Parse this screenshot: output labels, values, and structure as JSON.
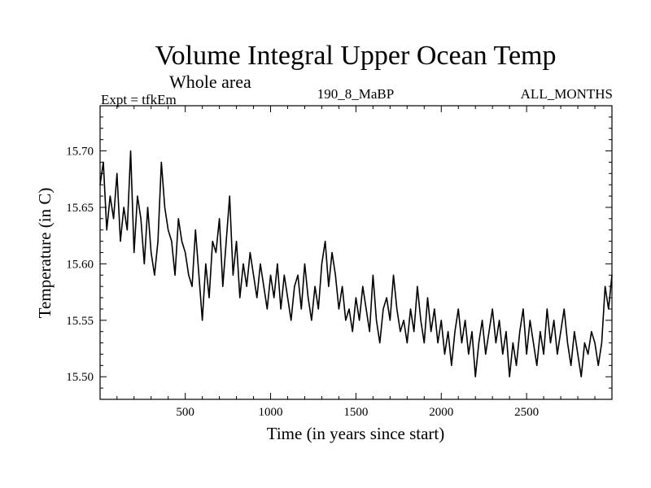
{
  "chart_data": {
    "type": "line",
    "title": "Volume Integral Upper Ocean Temp",
    "subtitle": "Whole area",
    "annotations": {
      "experiment": "Expt = tfkEm",
      "run": "190_8_MaBP",
      "months": "ALL_MONTHS"
    },
    "xlabel": "Time (in years since start)",
    "ylabel": "Temperature (in C)",
    "xlim": [
      1,
      3000
    ],
    "ylim": [
      15.48,
      15.74
    ],
    "x_ticks": [
      500,
      1000,
      1500,
      2000,
      2500
    ],
    "x_tick_labels": [
      "500",
      "1000",
      "1500",
      "2000",
      "2500"
    ],
    "y_ticks": [
      15.5,
      15.55,
      15.6,
      15.65,
      15.7
    ],
    "y_tick_labels": [
      "15.50",
      "15.55",
      "15.60",
      "15.65",
      "15.70"
    ],
    "grid": false,
    "legend": "none",
    "line_color": "#000000",
    "series": [
      {
        "x": [
          1,
          20,
          40,
          60,
          80,
          100,
          120,
          140,
          160,
          180,
          200,
          220,
          240,
          260,
          280,
          300,
          320,
          340,
          360,
          380,
          400,
          420,
          440,
          460,
          480,
          500,
          520,
          540,
          560,
          580,
          600,
          620,
          640,
          660,
          680,
          700,
          720,
          740,
          760,
          780,
          800,
          820,
          840,
          860,
          880,
          900,
          920,
          940,
          960,
          980,
          1000,
          1020,
          1040,
          1060,
          1080,
          1100,
          1120,
          1140,
          1160,
          1180,
          1200,
          1220,
          1240,
          1260,
          1280,
          1300,
          1320,
          1340,
          1360,
          1380,
          1400,
          1420,
          1440,
          1460,
          1480,
          1500,
          1520,
          1540,
          1560,
          1580,
          1600,
          1620,
          1640,
          1660,
          1680,
          1700,
          1720,
          1740,
          1760,
          1780,
          1800,
          1820,
          1840,
          1860,
          1880,
          1900,
          1920,
          1940,
          1960,
          1980,
          2000,
          2020,
          2040,
          2060,
          2080,
          2100,
          2120,
          2140,
          2160,
          2180,
          2200,
          2220,
          2240,
          2260,
          2280,
          2300,
          2320,
          2340,
          2360,
          2380,
          2400,
          2420,
          2440,
          2460,
          2480,
          2500,
          2520,
          2540,
          2560,
          2580,
          2600,
          2620,
          2640,
          2660,
          2680,
          2700,
          2720,
          2740,
          2760,
          2780,
          2800,
          2820,
          2840,
          2860,
          2880,
          2900,
          2920,
          2940,
          2960,
          2980,
          3000
        ],
        "values": [
          15.67,
          15.69,
          15.63,
          15.66,
          15.64,
          15.68,
          15.62,
          15.65,
          15.63,
          15.7,
          15.61,
          15.66,
          15.64,
          15.6,
          15.65,
          15.61,
          15.59,
          15.62,
          15.69,
          15.65,
          15.63,
          15.62,
          15.59,
          15.64,
          15.62,
          15.61,
          15.59,
          15.58,
          15.63,
          15.59,
          15.55,
          15.6,
          15.57,
          15.62,
          15.61,
          15.64,
          15.58,
          15.62,
          15.66,
          15.59,
          15.62,
          15.57,
          15.6,
          15.58,
          15.61,
          15.59,
          15.57,
          15.6,
          15.58,
          15.56,
          15.59,
          15.57,
          15.6,
          15.56,
          15.59,
          15.57,
          15.55,
          15.58,
          15.59,
          15.56,
          15.6,
          15.57,
          15.55,
          15.58,
          15.56,
          15.6,
          15.62,
          15.58,
          15.61,
          15.59,
          15.56,
          15.58,
          15.55,
          15.56,
          15.54,
          15.57,
          15.55,
          15.58,
          15.56,
          15.54,
          15.59,
          15.55,
          15.53,
          15.56,
          15.57,
          15.55,
          15.59,
          15.56,
          15.54,
          15.55,
          15.53,
          15.56,
          15.54,
          15.58,
          15.55,
          15.53,
          15.57,
          15.54,
          15.56,
          15.53,
          15.55,
          15.52,
          15.54,
          15.51,
          15.54,
          15.56,
          15.53,
          15.55,
          15.52,
          15.54,
          15.5,
          15.53,
          15.55,
          15.52,
          15.54,
          15.56,
          15.53,
          15.55,
          15.52,
          15.54,
          15.5,
          15.53,
          15.51,
          15.54,
          15.56,
          15.52,
          15.55,
          15.53,
          15.51,
          15.54,
          15.52,
          15.56,
          15.53,
          15.55,
          15.52,
          15.54,
          15.56,
          15.53,
          15.51,
          15.54,
          15.52,
          15.5,
          15.53,
          15.52,
          15.54,
          15.53,
          15.51,
          15.53,
          15.58,
          15.56,
          15.59
        ]
      }
    ]
  }
}
